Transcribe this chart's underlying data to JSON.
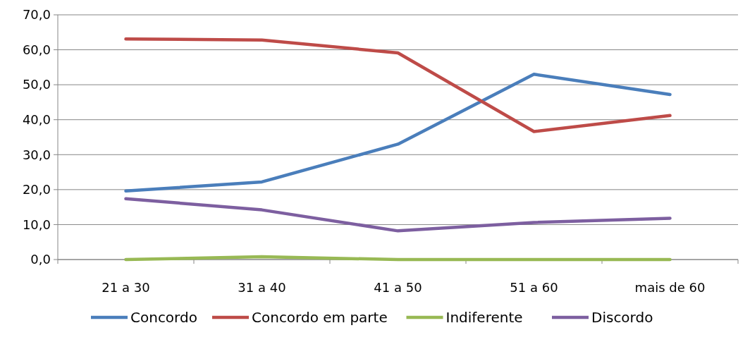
{
  "chart_data": {
    "type": "line",
    "categories": [
      "21 a 30",
      "31 a 40",
      "41 a 50",
      "51 a 60",
      "mais de 60"
    ],
    "series": [
      {
        "name": "Concordo",
        "color": "#4a7ebb",
        "values": [
          19.6,
          22.2,
          33.0,
          53.0,
          47.2
        ]
      },
      {
        "name": "Concordo em parte",
        "color": "#be4b48",
        "values": [
          63.1,
          62.8,
          59.1,
          36.6,
          41.2
        ]
      },
      {
        "name": "Indiferente",
        "color": "#98b954",
        "values": [
          0.0,
          0.8,
          0.0,
          0.0,
          0.0
        ]
      },
      {
        "name": "Discordo",
        "color": "#7d5fa0",
        "values": [
          17.4,
          14.2,
          8.2,
          10.6,
          11.8
        ]
      }
    ],
    "ylim": [
      0,
      70
    ],
    "yticks": [
      {
        "value": 0,
        "label": "0,0"
      },
      {
        "value": 10,
        "label": "10,0"
      },
      {
        "value": 20,
        "label": "20,0"
      },
      {
        "value": 30,
        "label": "30,0"
      },
      {
        "value": 40,
        "label": "40,0"
      },
      {
        "value": 50,
        "label": "50,0"
      },
      {
        "value": 60,
        "label": "60,0"
      },
      {
        "value": 70,
        "label": "70,0"
      }
    ],
    "grid": "y",
    "legend": "bottom",
    "marker": "none",
    "line_style": "solid"
  }
}
